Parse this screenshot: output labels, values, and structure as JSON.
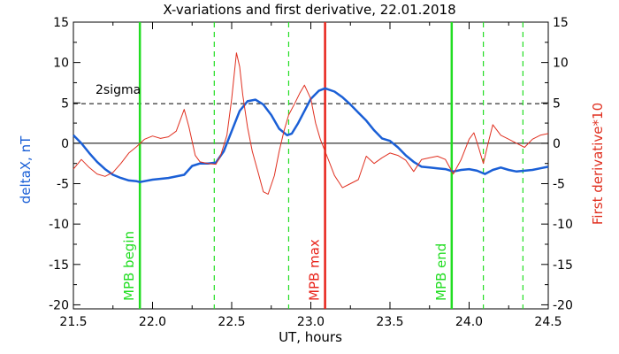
{
  "chart_data": {
    "type": "line",
    "title": "X-variations and first derivative, 22.01.2018",
    "xlabel": "UT, hours",
    "ylabel_left": "deltaX, nT",
    "ylabel_right": "First derivative*10",
    "xlim": [
      21.5,
      24.5
    ],
    "ylim": [
      -20.5,
      15
    ],
    "xticks": [
      21.5,
      22.0,
      22.5,
      23.0,
      23.5,
      24.0,
      24.5
    ],
    "xtick_labels": [
      "21.5",
      "22.0",
      "22.5",
      "23.0",
      "23.5",
      "24.0",
      "24.5"
    ],
    "yticks": [
      15,
      10,
      5,
      0,
      -5,
      -10,
      -15,
      -20
    ],
    "ytick_labels": [
      "15",
      "10",
      "5",
      "0",
      "-5",
      "-10",
      "-15",
      "-20"
    ],
    "threshold": {
      "value": 4.9,
      "label": "2sigma"
    },
    "vertical_lines": [
      {
        "x": 21.92,
        "style": "solid",
        "color": "#22dd22",
        "label": "MPB begin"
      },
      {
        "x": 22.39,
        "style": "dashed",
        "color": "#22dd22",
        "label": ""
      },
      {
        "x": 22.86,
        "style": "dashed",
        "color": "#22dd22",
        "label": ""
      },
      {
        "x": 23.09,
        "style": "solid",
        "color": "#e8231a",
        "label": "MPB max"
      },
      {
        "x": 23.89,
        "style": "solid",
        "color": "#22dd22",
        "label": "MPB end"
      },
      {
        "x": 24.09,
        "style": "dashed",
        "color": "#22dd22",
        "label": ""
      },
      {
        "x": 24.34,
        "style": "dashed",
        "color": "#22dd22",
        "label": ""
      }
    ],
    "series": [
      {
        "color": "#1a5fd6",
        "x": [
          21.5,
          21.55,
          21.6,
          21.65,
          21.7,
          21.75,
          21.8,
          21.85,
          21.9,
          21.92,
          22.0,
          22.1,
          22.2,
          22.25,
          22.3,
          22.35,
          22.4,
          22.45,
          22.5,
          22.55,
          22.6,
          22.65,
          22.7,
          22.75,
          22.8,
          22.85,
          22.88,
          22.92,
          22.96,
          23.0,
          23.05,
          23.09,
          23.15,
          23.2,
          23.25,
          23.3,
          23.35,
          23.4,
          23.45,
          23.5,
          23.55,
          23.6,
          23.65,
          23.7,
          23.75,
          23.8,
          23.85,
          23.9,
          23.95,
          24.0,
          24.05,
          24.1,
          24.15,
          24.2,
          24.25,
          24.3,
          24.35,
          24.4,
          24.45,
          24.5
        ],
        "values": [
          1.0,
          0.0,
          -1.2,
          -2.3,
          -3.2,
          -3.9,
          -4.3,
          -4.6,
          -4.7,
          -4.8,
          -4.5,
          -4.3,
          -3.9,
          -2.8,
          -2.5,
          -2.5,
          -2.4,
          -1.0,
          1.5,
          4.0,
          5.2,
          5.4,
          4.8,
          3.5,
          1.8,
          1.0,
          1.2,
          2.5,
          4.0,
          5.5,
          6.5,
          6.8,
          6.4,
          5.7,
          4.8,
          3.8,
          2.8,
          1.6,
          0.6,
          0.3,
          -0.5,
          -1.5,
          -2.3,
          -2.9,
          -3.0,
          -3.1,
          -3.2,
          -3.5,
          -3.3,
          -3.2,
          -3.4,
          -3.8,
          -3.3,
          -3.0,
          -3.3,
          -3.5,
          -3.4,
          -3.3,
          -3.1,
          -2.9
        ]
      },
      {
        "color": "#e03020",
        "x": [
          21.5,
          21.55,
          21.6,
          21.65,
          21.7,
          21.75,
          21.8,
          21.85,
          21.9,
          21.95,
          22.0,
          22.05,
          22.1,
          22.15,
          22.2,
          22.23,
          22.27,
          22.3,
          22.35,
          22.4,
          22.43,
          22.47,
          22.5,
          22.53,
          22.55,
          22.57,
          22.6,
          22.63,
          22.67,
          22.7,
          22.73,
          22.77,
          22.8,
          22.83,
          22.86,
          22.9,
          22.93,
          22.96,
          23.0,
          23.03,
          23.06,
          23.09,
          23.12,
          23.15,
          23.2,
          23.25,
          23.3,
          23.35,
          23.4,
          23.45,
          23.5,
          23.55,
          23.6,
          23.65,
          23.7,
          23.75,
          23.8,
          23.85,
          23.9,
          23.95,
          24.0,
          24.03,
          24.06,
          24.09,
          24.12,
          24.15,
          24.2,
          24.25,
          24.3,
          24.35,
          24.4,
          24.45,
          24.5
        ],
        "values": [
          -3.2,
          -2.0,
          -3.0,
          -3.8,
          -4.1,
          -3.6,
          -2.5,
          -1.2,
          -0.4,
          0.5,
          0.9,
          0.6,
          0.8,
          1.5,
          4.2,
          2.0,
          -1.5,
          -2.3,
          -2.5,
          -2.6,
          -1.5,
          1.0,
          5.5,
          11.2,
          9.5,
          6.0,
          2.0,
          -1.0,
          -3.8,
          -6.0,
          -6.3,
          -4.0,
          -1.0,
          1.5,
          3.5,
          5.0,
          6.2,
          7.2,
          5.5,
          2.5,
          0.5,
          -1.0,
          -2.5,
          -4.0,
          -5.5,
          -5.0,
          -4.5,
          -1.6,
          -2.5,
          -1.8,
          -1.2,
          -1.5,
          -2.1,
          -3.5,
          -2.0,
          -1.8,
          -1.6,
          -2.0,
          -3.8,
          -2.0,
          0.5,
          1.3,
          -0.5,
          -2.5,
          0.0,
          2.3,
          1.0,
          0.5,
          0.0,
          -0.5,
          0.5,
          1.0,
          1.2
        ]
      }
    ],
    "grid": false,
    "legend": "none"
  }
}
